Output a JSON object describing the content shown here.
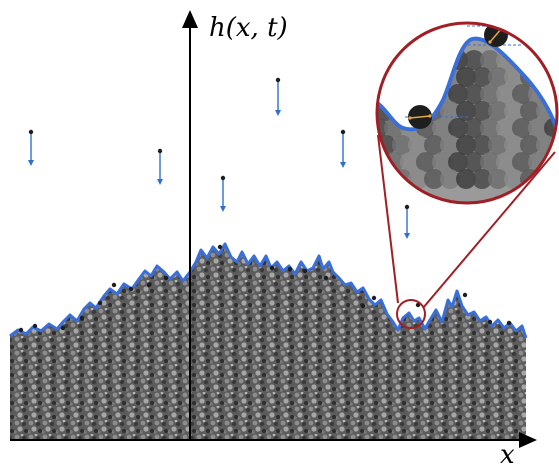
{
  "axes": {
    "y_label": "h(x, t)",
    "x_label": "x"
  },
  "colors": {
    "interface": "#3b6fd8",
    "particle_dark": "#2a2a2a",
    "particle_mid": "#7a7a7a",
    "particle_light": "#bdbdbd",
    "zoom_ring": "#a01f24",
    "arrow_blue": "#2f6fd0",
    "particle_marker": "#1e1e1e",
    "tangent_arrow": "#e8a53a",
    "guide_dash": "#3b6fd8"
  },
  "icons": {
    "falling_particle": "falling-arrow-icon",
    "magnifier": "zoom-circle-icon",
    "particle": "particle-dot-icon"
  }
}
